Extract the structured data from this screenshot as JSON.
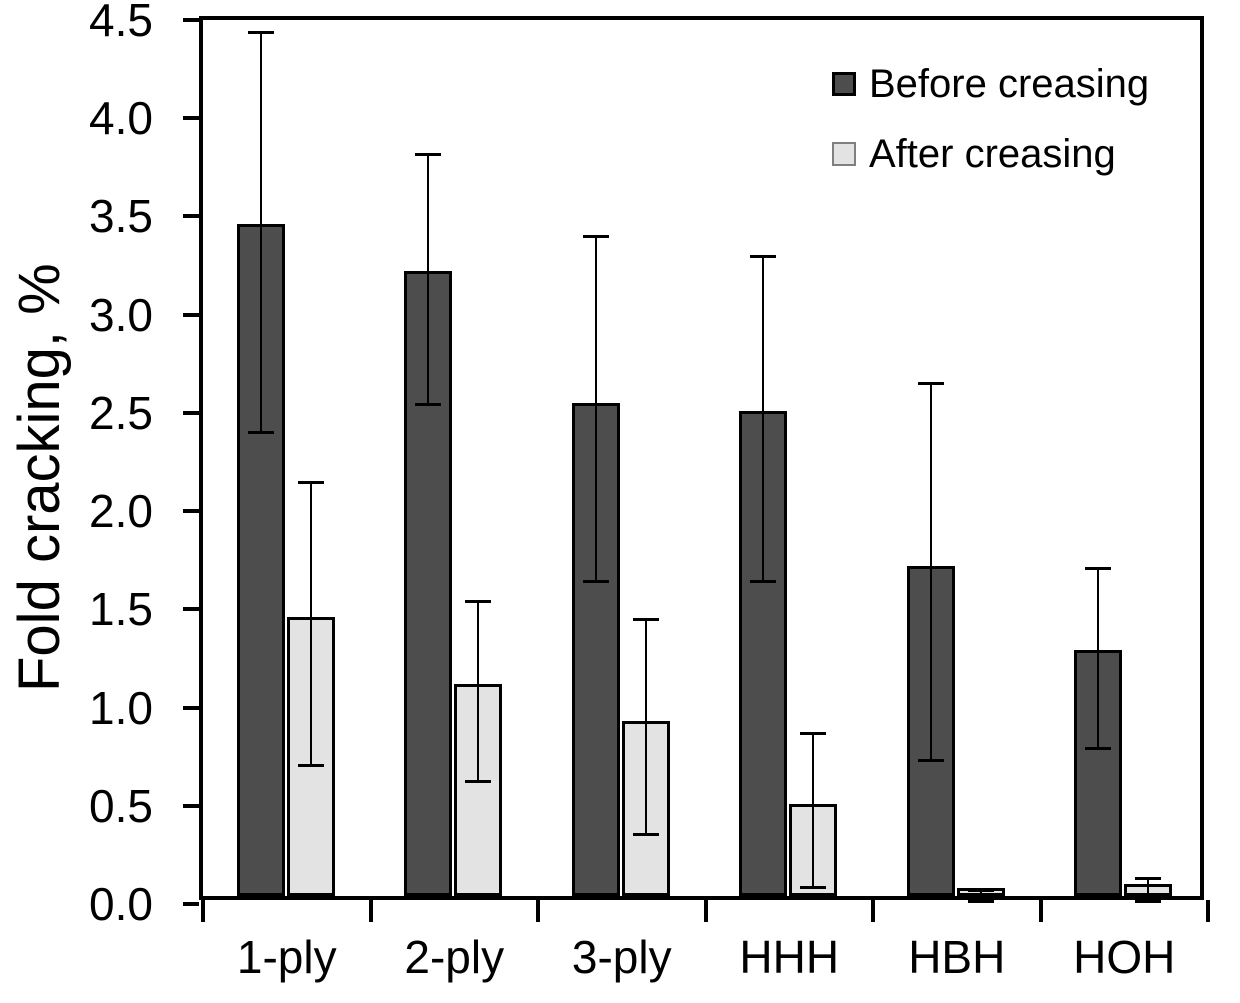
{
  "chart_data": {
    "type": "bar",
    "title": "",
    "xlabel": "",
    "ylabel": "Fold cracking, %",
    "ylim": [
      0,
      4.5
    ],
    "ytick_step": 0.5,
    "ytick_labels": [
      "0.0",
      "0.5",
      "1.0",
      "1.5",
      "2.0",
      "2.5",
      "3.0",
      "3.5",
      "4.0",
      "4.5"
    ],
    "grid": false,
    "legend_position": "top-right-inside",
    "categories": [
      "1-ply",
      "2-ply",
      "3-ply",
      "HHH",
      "HBH",
      "HOH"
    ],
    "series": [
      {
        "name": "Before creasing",
        "fill_color": "#4d4d4d",
        "border_color": "#000000",
        "values": [
          3.42,
          3.18,
          2.51,
          2.47,
          1.68,
          1.25
        ],
        "err_low": [
          2.4,
          2.54,
          1.64,
          1.64,
          0.73,
          0.79
        ],
        "err_high": [
          4.44,
          3.82,
          3.4,
          3.3,
          2.65,
          1.71
        ]
      },
      {
        "name": "After creasing",
        "fill_color": "#e3e3e3",
        "border_color": "#000000",
        "values": [
          1.42,
          1.08,
          0.89,
          0.47,
          0.04,
          0.06
        ],
        "err_low": [
          0.7,
          0.62,
          0.35,
          0.08,
          0.01,
          0.01
        ],
        "err_high": [
          2.15,
          1.54,
          1.45,
          0.87,
          0.07,
          0.13
        ]
      }
    ],
    "error_bar_color": "#000000",
    "axis_color": "#000000"
  }
}
